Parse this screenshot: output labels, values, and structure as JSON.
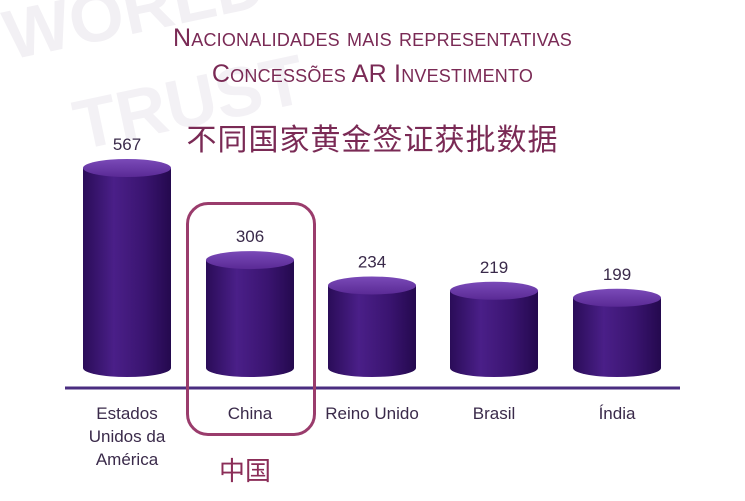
{
  "title_line1": "Nacionalidades mais representativas",
  "title_line2": "Concessões AR Investimento",
  "title_cn": "不同国家黄金签证获批数据",
  "highlight_note": "中国",
  "colors": {
    "bar_front": "#3a1470",
    "bar_mid": "#5a2a95",
    "bar_top": "#6a3aa8",
    "axis": "#4a2d80",
    "title": "#7a2a55",
    "highlight": "#9a3c6c"
  },
  "chart_data": {
    "type": "bar",
    "categories": [
      "Estados Unidos da América",
      "China",
      "Reino Unido",
      "Brasil",
      "Índia"
    ],
    "category_label_lines": [
      [
        "Estados",
        "Unidos da",
        "América"
      ],
      [
        "China"
      ],
      [
        "Reino Unido"
      ],
      [
        "Brasil"
      ],
      [
        "Índia"
      ]
    ],
    "values": [
      567,
      306,
      234,
      219,
      199
    ],
    "title": "Nacionalidades mais representativas",
    "subtitle": "Concessões AR Investimento",
    "xlabel": "",
    "ylabel": "",
    "ylim": [
      0,
      600
    ],
    "highlighted_category": "China",
    "grid": false
  }
}
